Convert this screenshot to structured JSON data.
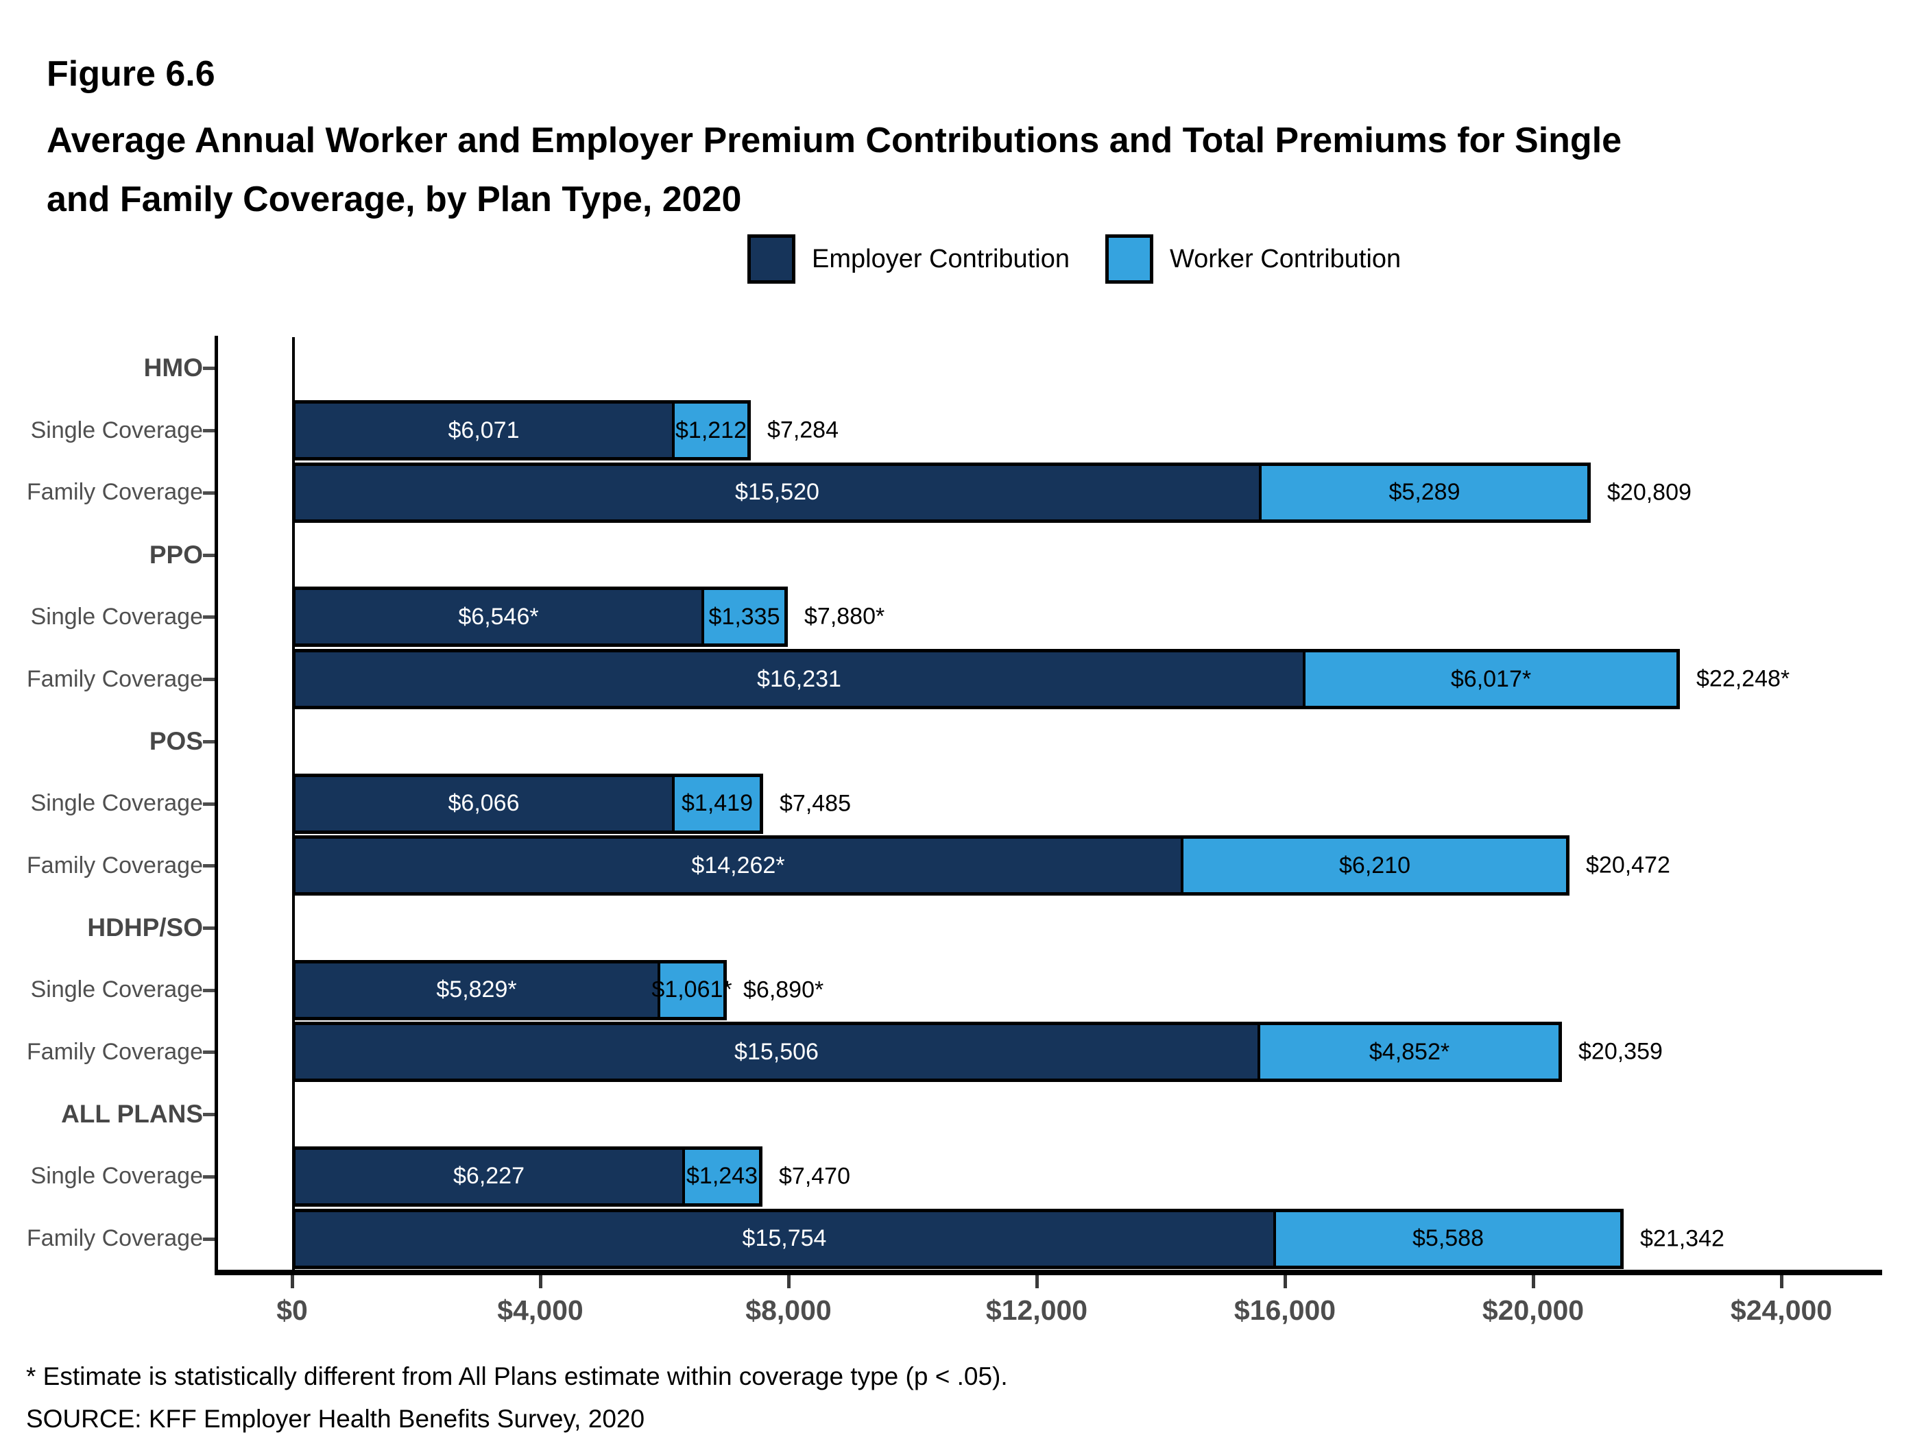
{
  "title": "Figure 6.6",
  "subtitle_lines": [
    "Average Annual Worker and Employer Premium Contributions and Total Premiums for Single",
    "and Family Coverage, by Plan Type, 2020"
  ],
  "legend": {
    "employer": {
      "label": "Employer Contribution",
      "color": "#16345A"
    },
    "worker": {
      "label": "Worker Contribution",
      "color": "#35A3DF"
    }
  },
  "footnotes": {
    "asterisk": "* Estimate is statistically different from All Plans estimate within coverage type (p < .05).",
    "source": "SOURCE: KFF Employer Health Benefits Survey, 2020"
  },
  "x_axis": {
    "ticks": [
      "$0",
      "$4,000",
      "$8,000",
      "$12,000",
      "$16,000",
      "$20,000",
      "$24,000"
    ],
    "tick_values": [
      0,
      4000,
      8000,
      12000,
      16000,
      20000,
      24000
    ]
  },
  "chart_data": {
    "type": "bar",
    "orientation": "horizontal",
    "stacked": true,
    "xlim": [
      0,
      25600
    ],
    "grid": false,
    "legend_position": "top",
    "series_names": [
      "Employer Contribution",
      "Worker Contribution"
    ],
    "groups": [
      {
        "label": "HMO",
        "rows": [
          {
            "label": "Single Coverage",
            "employer": 6071,
            "worker": 1212,
            "total": 7284,
            "employer_label": "$6,071",
            "worker_label": "$1,212",
            "total_label": "$7,284"
          },
          {
            "label": "Family Coverage",
            "employer": 15520,
            "worker": 5289,
            "total": 20809,
            "employer_label": "$15,520",
            "worker_label": "$5,289",
            "total_label": "$20,809"
          }
        ]
      },
      {
        "label": "PPO",
        "rows": [
          {
            "label": "Single Coverage",
            "employer": 6546,
            "worker": 1335,
            "total": 7880,
            "employer_label": "$6,546*",
            "worker_label": "$1,335",
            "total_label": "$7,880*"
          },
          {
            "label": "Family Coverage",
            "employer": 16231,
            "worker": 6017,
            "total": 22248,
            "employer_label": "$16,231",
            "worker_label": "$6,017*",
            "total_label": "$22,248*"
          }
        ]
      },
      {
        "label": "POS",
        "rows": [
          {
            "label": "Single Coverage",
            "employer": 6066,
            "worker": 1419,
            "total": 7485,
            "employer_label": "$6,066",
            "worker_label": "$1,419",
            "total_label": "$7,485"
          },
          {
            "label": "Family Coverage",
            "employer": 14262,
            "worker": 6210,
            "total": 20472,
            "employer_label": "$14,262*",
            "worker_label": "$6,210",
            "total_label": "$20,472"
          }
        ]
      },
      {
        "label": "HDHP/SO",
        "rows": [
          {
            "label": "Single Coverage",
            "employer": 5829,
            "worker": 1061,
            "total": 6890,
            "employer_label": "$5,829*",
            "worker_label": "$1,061*",
            "total_label": "$6,890*"
          },
          {
            "label": "Family Coverage",
            "employer": 15506,
            "worker": 4852,
            "total": 20359,
            "employer_label": "$15,506",
            "worker_label": "$4,852*",
            "total_label": "$20,359"
          }
        ]
      },
      {
        "label": "ALL PLANS",
        "rows": [
          {
            "label": "Single Coverage",
            "employer": 6227,
            "worker": 1243,
            "total": 7470,
            "employer_label": "$6,227",
            "worker_label": "$1,243",
            "total_label": "$7,470"
          },
          {
            "label": "Family Coverage",
            "employer": 15754,
            "worker": 5588,
            "total": 21342,
            "employer_label": "$15,754",
            "worker_label": "$5,588",
            "total_label": "$21,342"
          }
        ]
      }
    ]
  }
}
